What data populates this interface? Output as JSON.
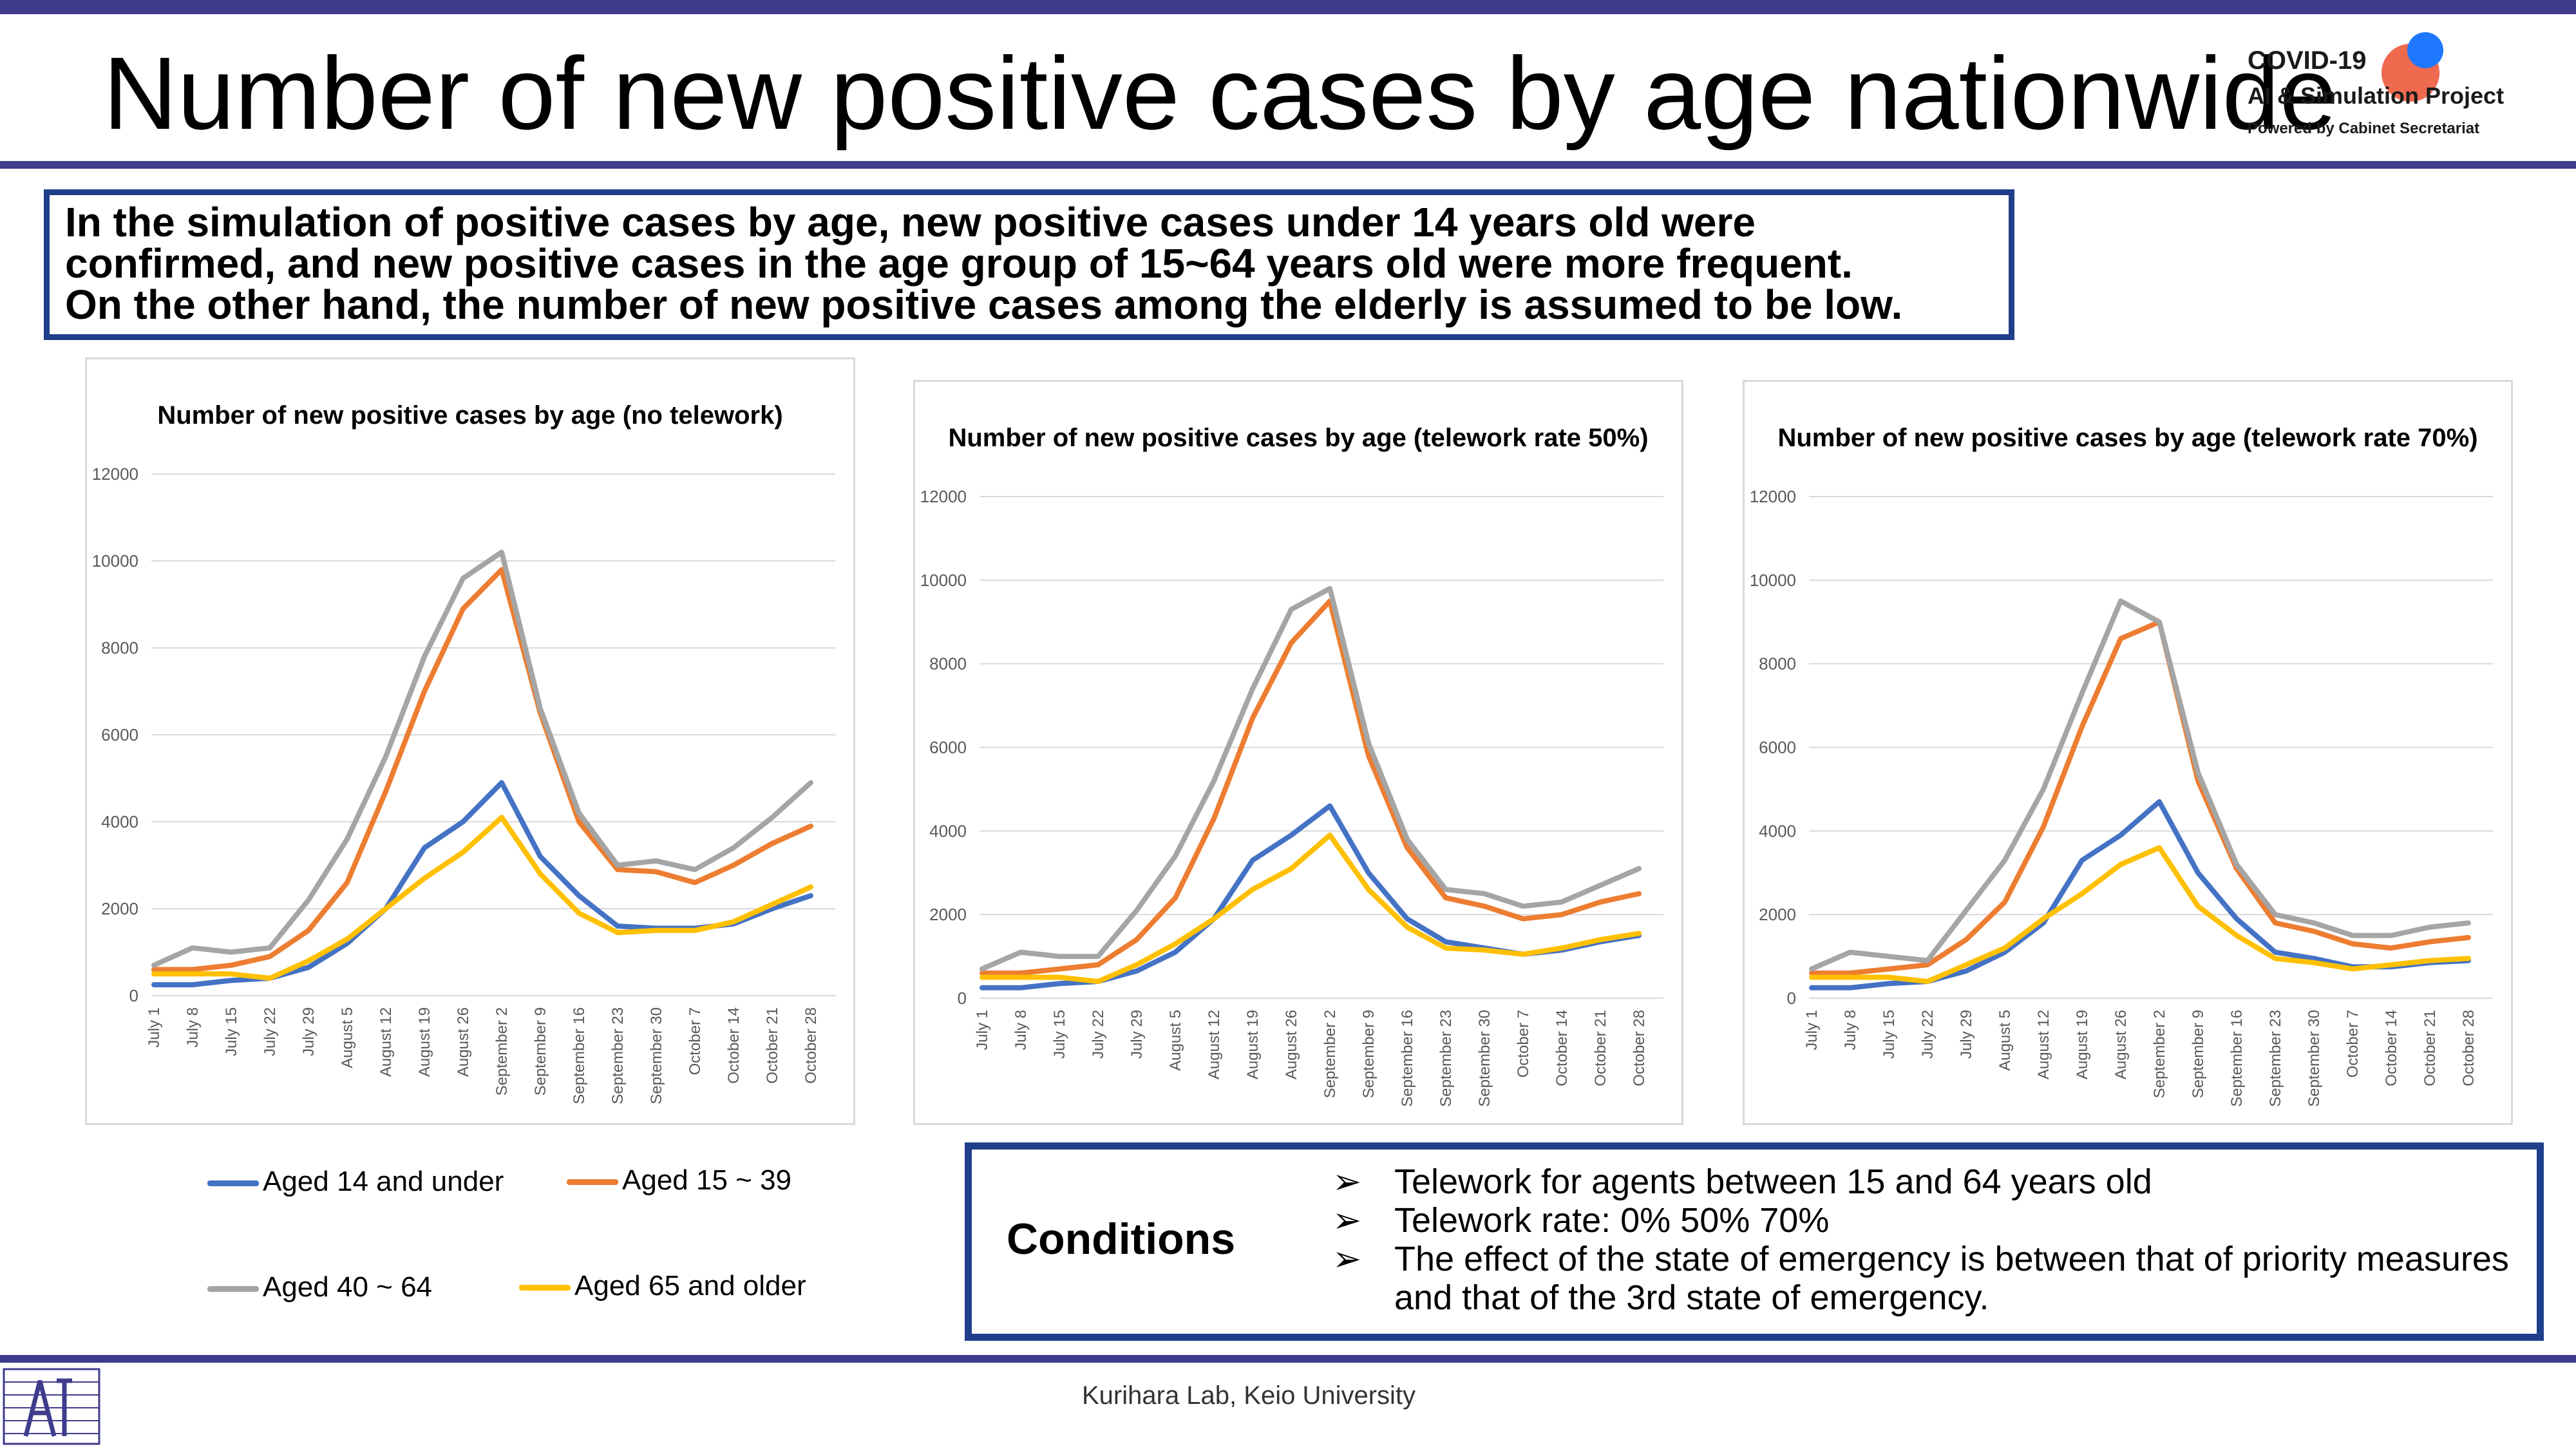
{
  "title": "Number of new positive cases by age nationwide",
  "logo": {
    "line1": "COVID-19",
    "line2": "AI & Simulation Project",
    "line3": "Powered by Cabinet Secretariat"
  },
  "summary": {
    "line1": "In the simulation of positive cases by age, new positive cases under 14 years old were",
    "line2": "confirmed, and new positive cases in the age group of 15~64 years old were more frequent.",
    "line3": "On the other hand, the number of new positive cases among the elderly is assumed to be low."
  },
  "legend": [
    {
      "label": "Aged 14 and under",
      "color": "#4472c4"
    },
    {
      "label": "Aged 15 ~ 39",
      "color": "#ed7d31"
    },
    {
      "label": "Aged 40 ~ 64",
      "color": "#a5a5a5"
    },
    {
      "label": "Aged 65 and older",
      "color": "#ffc000"
    }
  ],
  "conditions": {
    "title": "Conditions",
    "arrow": "➢",
    "items": [
      "Telework for agents between 15 and 64 years old",
      "Telework rate: 0%  50%  70%",
      "The effect of the state of emergency is between that of priority measures",
      "and that of the 3rd state of emergency."
    ]
  },
  "footer": "Kurihara Lab, Keio University",
  "chart_data": [
    {
      "type": "line",
      "title": "Number of new positive cases by age (no telework)",
      "ylim": [
        0,
        12000
      ],
      "yticks": [
        0,
        2000,
        4000,
        6000,
        8000,
        10000,
        12000
      ],
      "x": [
        "July 1",
        "July 8",
        "July 15",
        "July 22",
        "July 29",
        "August 5",
        "August 12",
        "August 19",
        "August 26",
        "September 2",
        "September 9",
        "September 16",
        "September 23",
        "September 30",
        "October 7",
        "October 14",
        "October 21",
        "October 28"
      ],
      "grid": true,
      "series": [
        {
          "name": "Aged 14 and under",
          "values": [
            250,
            250,
            350,
            400,
            650,
            1200,
            2000,
            3400,
            4000,
            4900,
            3200,
            2300,
            1600,
            1550,
            1550,
            1650,
            2000,
            2300
          ]
        },
        {
          "name": "Aged 15 ~ 39",
          "values": [
            600,
            600,
            700,
            900,
            1500,
            2600,
            4700,
            7000,
            8900,
            9800,
            6500,
            4000,
            2900,
            2850,
            2600,
            3000,
            3500,
            3900
          ]
        },
        {
          "name": "Aged 40 ~ 64",
          "values": [
            700,
            1100,
            1000,
            1100,
            2200,
            3600,
            5500,
            7800,
            9600,
            10200,
            6600,
            4200,
            3000,
            3100,
            2900,
            3400,
            4100,
            4900
          ]
        },
        {
          "name": "Aged 65 and older",
          "values": [
            500,
            500,
            500,
            400,
            800,
            1300,
            2000,
            2700,
            3300,
            4100,
            2800,
            1900,
            1450,
            1500,
            1500,
            1700,
            2100,
            2500
          ]
        }
      ]
    },
    {
      "type": "line",
      "title": "Number of new positive cases by age (telework rate 50%)",
      "ylim": [
        0,
        12000
      ],
      "yticks": [
        0,
        2000,
        4000,
        6000,
        8000,
        10000,
        12000
      ],
      "x": [
        "July 1",
        "July 8",
        "July 15",
        "July 22",
        "July 29",
        "August 5",
        "August 12",
        "August 19",
        "August 26",
        "September 2",
        "September 9",
        "September 16",
        "September 23",
        "September 30",
        "October 7",
        "October 14",
        "October 21",
        "October 28"
      ],
      "grid": true,
      "series": [
        {
          "name": "Aged 14 and under",
          "values": [
            250,
            250,
            350,
            400,
            650,
            1100,
            1900,
            3300,
            3900,
            4600,
            3000,
            1900,
            1350,
            1200,
            1050,
            1150,
            1350,
            1500
          ]
        },
        {
          "name": "Aged 15 ~ 39",
          "values": [
            600,
            600,
            700,
            800,
            1400,
            2400,
            4300,
            6700,
            8500,
            9500,
            5800,
            3600,
            2400,
            2200,
            1900,
            2000,
            2300,
            2500
          ]
        },
        {
          "name": "Aged 40 ~ 64",
          "values": [
            700,
            1100,
            1000,
            1000,
            2100,
            3400,
            5200,
            7400,
            9300,
            9800,
            6100,
            3800,
            2600,
            2500,
            2200,
            2300,
            2700,
            3100
          ]
        },
        {
          "name": "Aged 65 and older",
          "values": [
            500,
            500,
            500,
            400,
            800,
            1300,
            1900,
            2600,
            3100,
            3900,
            2600,
            1700,
            1200,
            1150,
            1050,
            1200,
            1400,
            1550
          ]
        }
      ]
    },
    {
      "type": "line",
      "title": "Number of new positive cases by age (telework rate 70%)",
      "ylim": [
        0,
        12000
      ],
      "yticks": [
        0,
        2000,
        4000,
        6000,
        8000,
        10000,
        12000
      ],
      "x": [
        "July 1",
        "July 8",
        "July 15",
        "July 22",
        "July 29",
        "August 5",
        "August 12",
        "August 19",
        "August 26",
        "September 2",
        "September 9",
        "September 16",
        "September 23",
        "September 30",
        "October 7",
        "October 14",
        "October 21",
        "October 28"
      ],
      "grid": true,
      "series": [
        {
          "name": "Aged 14 and under",
          "values": [
            250,
            250,
            350,
            400,
            650,
            1100,
            1800,
            3300,
            3900,
            4700,
            3000,
            1900,
            1100,
            950,
            750,
            750,
            850,
            900
          ]
        },
        {
          "name": "Aged 15 ~ 39",
          "values": [
            600,
            600,
            700,
            800,
            1400,
            2300,
            4100,
            6500,
            8600,
            9000,
            5200,
            3100,
            1800,
            1600,
            1300,
            1200,
            1350,
            1450
          ]
        },
        {
          "name": "Aged 40 ~ 64",
          "values": [
            700,
            1100,
            1000,
            900,
            2100,
            3300,
            5000,
            7300,
            9500,
            9000,
            5400,
            3200,
            2000,
            1800,
            1500,
            1500,
            1700,
            1800
          ]
        },
        {
          "name": "Aged 65 and older",
          "values": [
            500,
            500,
            500,
            400,
            800,
            1200,
            1900,
            2500,
            3200,
            3600,
            2200,
            1500,
            950,
            850,
            700,
            800,
            900,
            950
          ]
        }
      ]
    }
  ]
}
